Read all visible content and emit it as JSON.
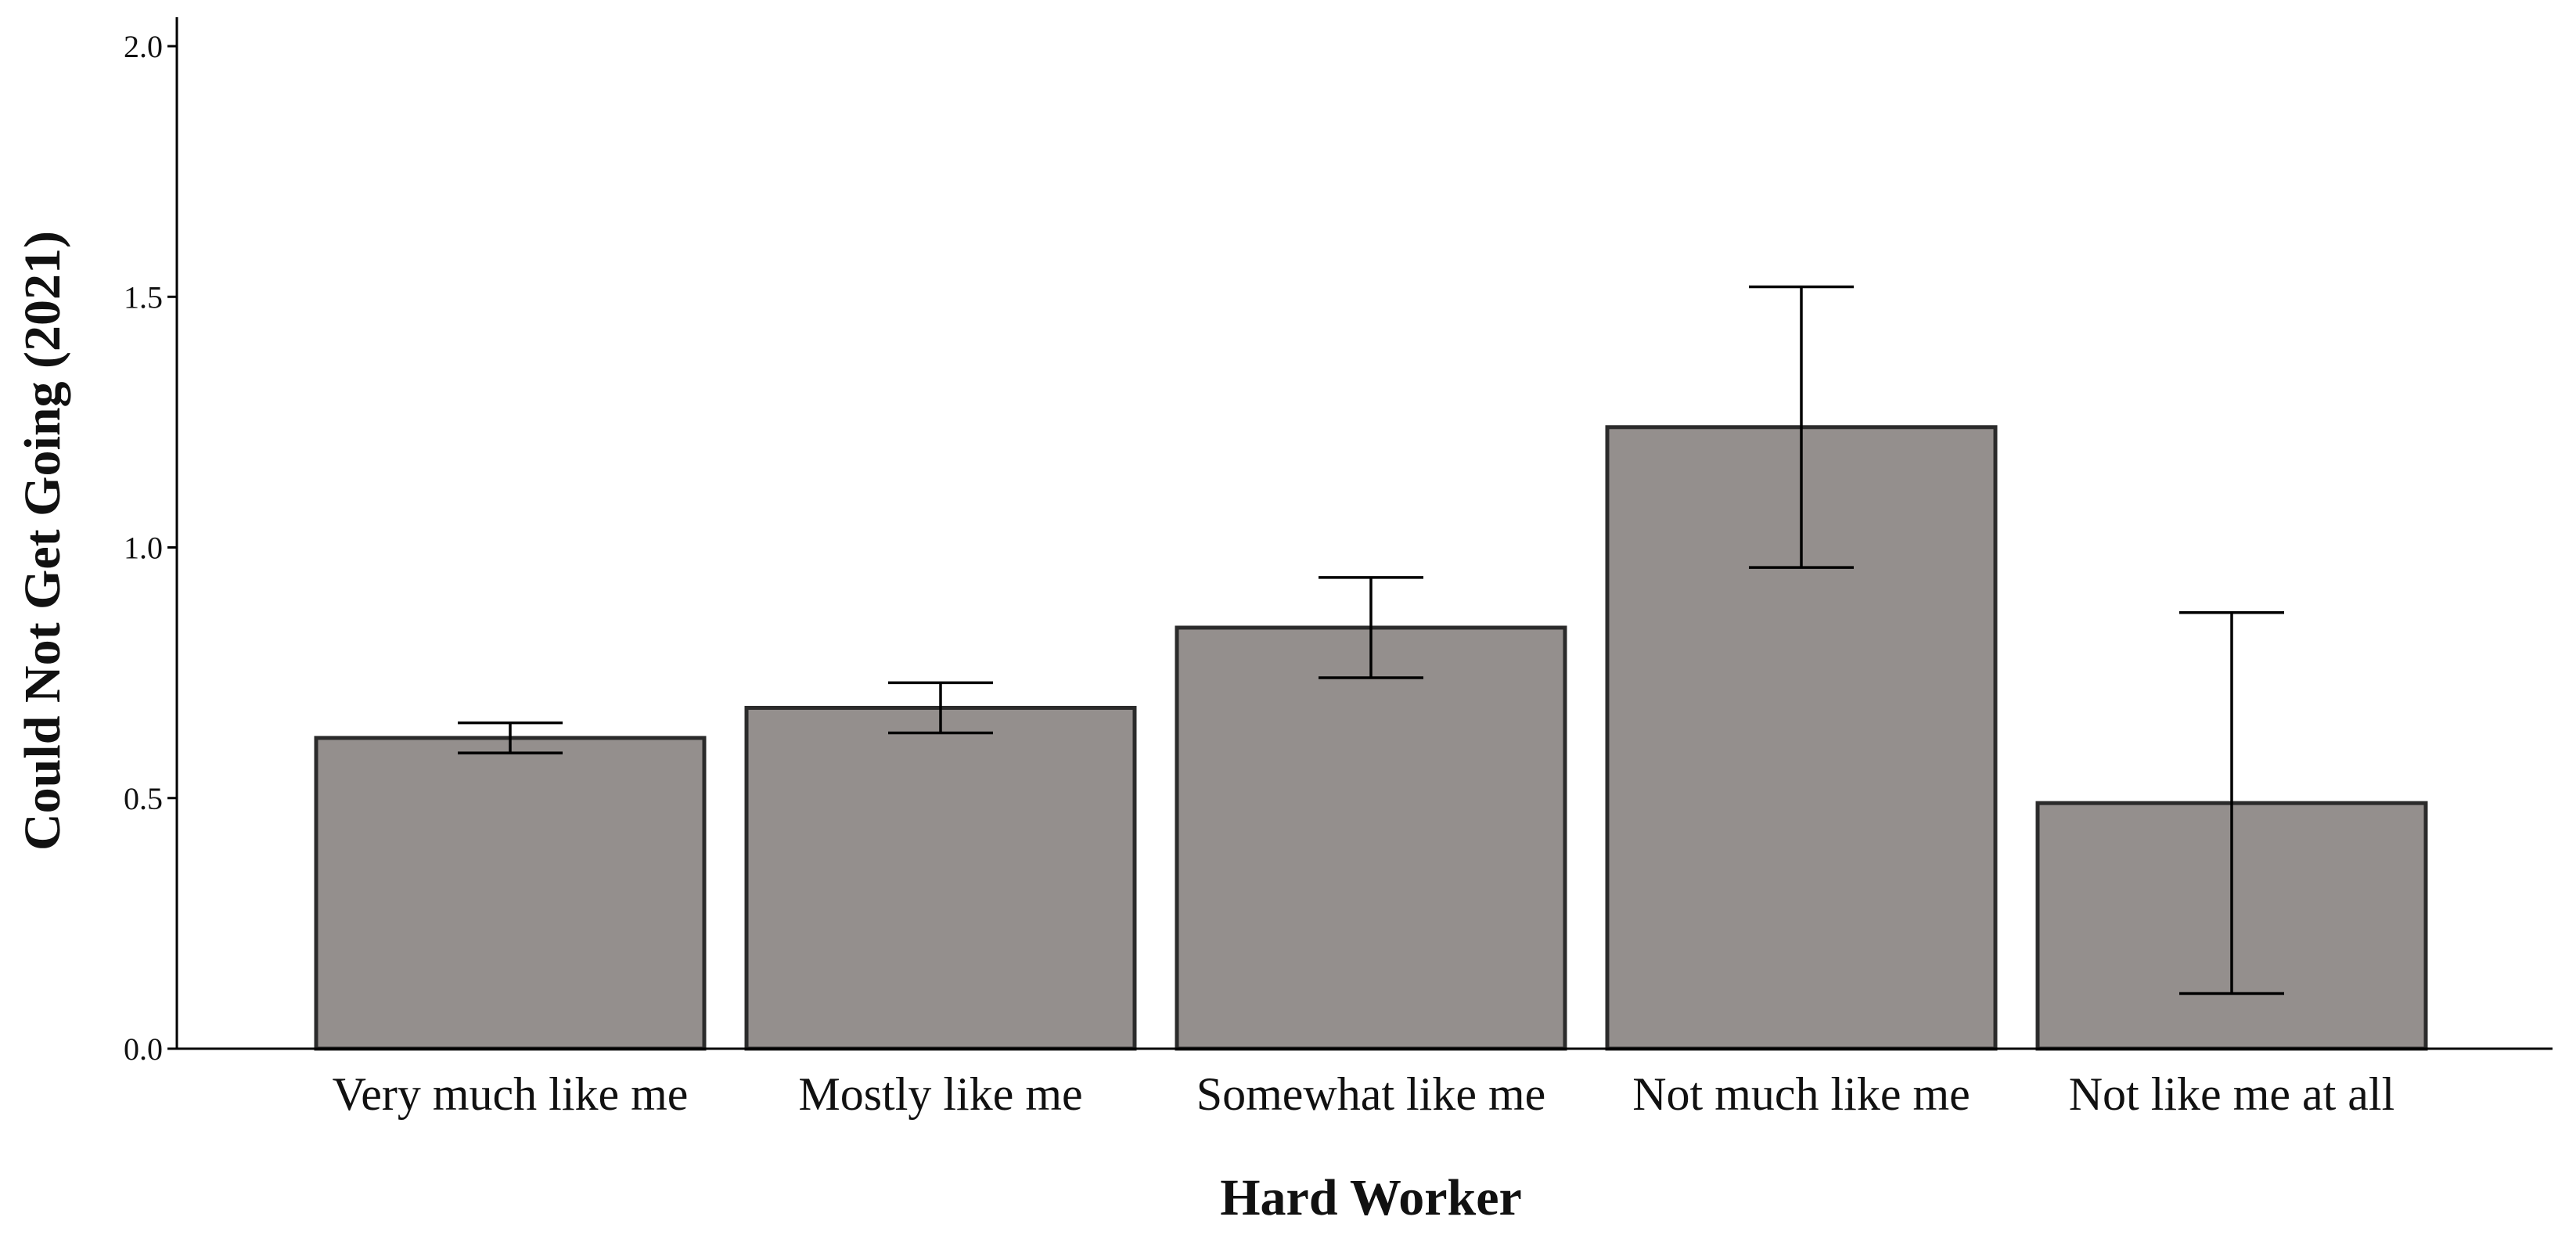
{
  "chart_data": {
    "type": "bar",
    "title": "",
    "xlabel": "Hard Worker",
    "ylabel": "Could Not Get Going (2021)",
    "categories": [
      "Very much like me",
      "Mostly like me",
      "Somewhat like me",
      "Not much like me",
      "Not like me at all"
    ],
    "values": [
      0.62,
      0.68,
      0.84,
      1.24,
      0.49
    ],
    "error_low": [
      0.59,
      0.63,
      0.74,
      0.96,
      0.11
    ],
    "error_high": [
      0.65,
      0.73,
      0.94,
      1.52,
      0.87
    ],
    "ylim": [
      0,
      2.1
    ],
    "yticks": [
      0.0,
      0.5,
      1.0,
      1.5,
      2.0
    ],
    "ytick_labels": [
      "0.0",
      "0.5",
      "1.0",
      "1.5",
      "2.0"
    ],
    "grid": false,
    "legend": "none",
    "colors": {
      "bar_fill": "#948f8d",
      "bar_stroke": "#2b2b2b",
      "axis": "#000000",
      "text": "#111111"
    }
  }
}
